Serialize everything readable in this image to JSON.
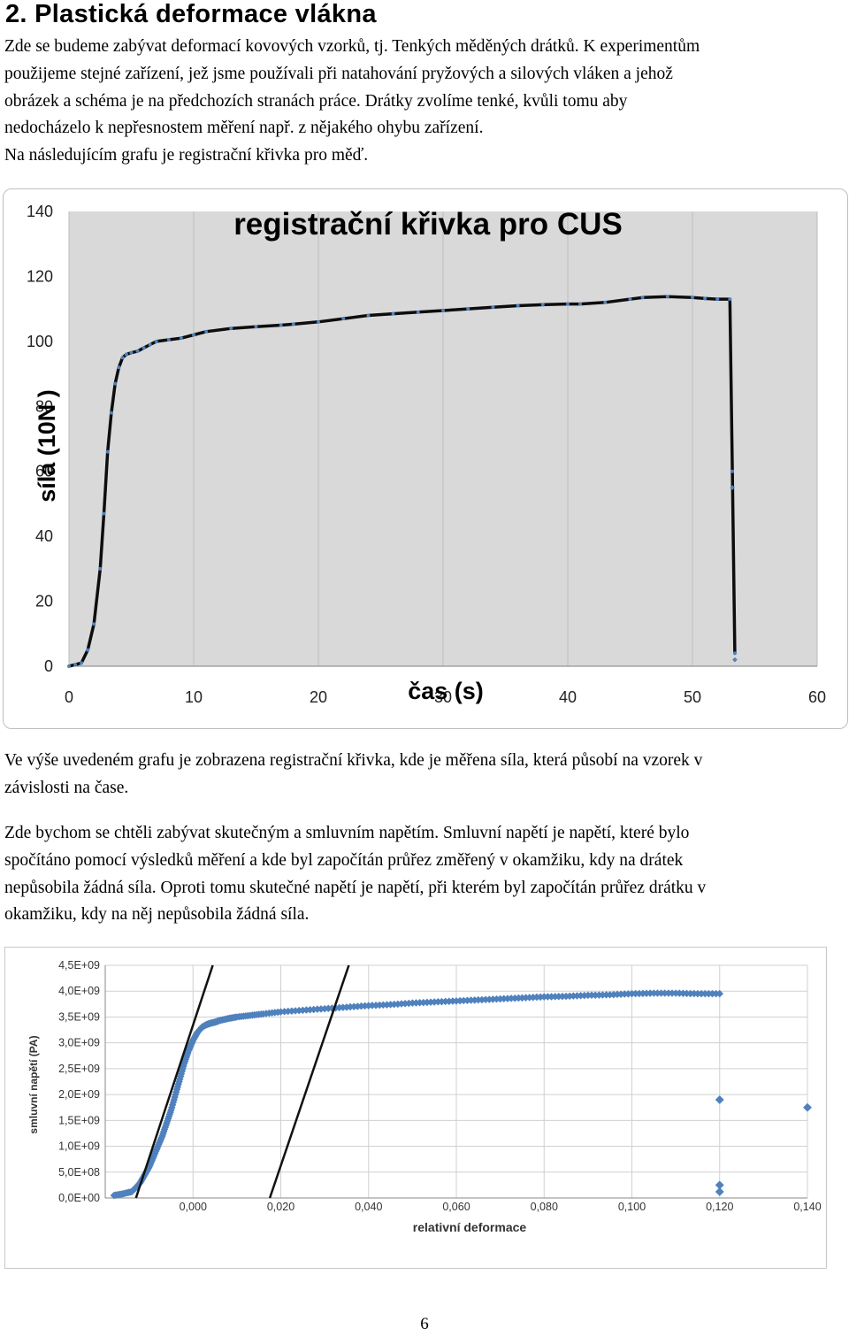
{
  "document": {
    "heading": "2. Plastická deformace vlákna",
    "intro_lines": [
      "Zde se budeme zabývat deformací kovových vzorků, tj. Tenkých měděných drátků. K experimentům",
      "použijeme stejné zařízení, jež jsme používali při natahování pryžových a silových vláken a jehož",
      "obrázek a schéma je na předchozích stranách práce. Drátky zvolíme tenké, kvůli tomu aby",
      "nedocházelo k nepřesnostem měření např. z nějakého ohybu zařízení.",
      "Na následujícím grafu je registrační křivka pro měď."
    ],
    "para2_lines": [
      "Ve výše uvedeném grafu je zobrazena registrační křivka, kde je měřena síla, která působí na vzorek v",
      "závislosti na čase."
    ],
    "para3_lines": [
      "Zde bychom se chtěli zabývat skutečným a smluvním napětím. Smluvní napětí je napětí, které bylo",
      "spočítáno pomocí výsledků měření a kde byl započítán průřez změřený v okamžiku, kdy na drátek",
      "nepůsobila žádná síla. Oproti tomu skutečné napětí je napětí, při kterém byl započítán průřez drátku v",
      "okamžiku, kdy na něj nepůsobila žádná síla."
    ],
    "page_number": "6"
  },
  "chart_data": [
    {
      "type": "line",
      "title": "registrační křivka pro CUS",
      "xlabel": "čas (s)",
      "ylabel": "síla (10N )",
      "xlim": [
        0,
        60
      ],
      "ylim": [
        0,
        140
      ],
      "x_ticks": [
        "0",
        "10",
        "20",
        "30",
        "40",
        "50",
        "60"
      ],
      "y_ticks": [
        "0",
        "20",
        "40",
        "60",
        "80",
        "100",
        "120",
        "140"
      ],
      "plot_background": "#d9d9d9",
      "line_color": "#0d0d0d",
      "marker_color": "#4f81bd",
      "grid": "vertical",
      "series": [
        {
          "x": [
            0,
            0.5,
            1,
            1.5,
            2,
            2.5,
            2.8,
            3.1,
            3.4,
            3.7,
            4,
            4.3,
            4.6,
            5,
            5.5,
            6,
            6.5,
            7,
            8,
            9,
            10,
            11,
            13,
            15,
            17,
            18,
            20,
            22,
            24,
            26,
            28,
            30,
            32,
            34,
            36,
            38,
            40,
            41,
            43,
            45,
            46,
            48,
            50,
            51,
            52,
            53,
            53.2,
            53.4
          ],
          "y": [
            0,
            0.5,
            1,
            5,
            13,
            30,
            47,
            66,
            78,
            87,
            92,
            95,
            96,
            96.5,
            97,
            98,
            99,
            100,
            100.5,
            101,
            102,
            103,
            104,
            104.5,
            105,
            105.3,
            106,
            107,
            108,
            108.5,
            109,
            109.5,
            110,
            110.5,
            111,
            111.3,
            111.5,
            111.5,
            112,
            113,
            113.5,
            113.8,
            113.5,
            113.2,
            113,
            113,
            60,
            4
          ]
        }
      ],
      "outlier_points": [
        [
          53.4,
          2
        ],
        [
          53.2,
          55
        ]
      ]
    },
    {
      "type": "scatter",
      "title": "",
      "xlabel": "relativní deformace",
      "ylabel": "smluvní napětí (PA)",
      "xlim": [
        -0.02,
        0.14
      ],
      "ylim": [
        0,
        4500000000
      ],
      "x_ticks": [
        "0,000",
        "0,020",
        "0,040",
        "0,060",
        "0,080",
        "0,100",
        "0,120",
        "0,140"
      ],
      "y_ticks": [
        "0,0E+00",
        "5,0E+08",
        "1,0E+09",
        "1,5E+09",
        "2,0E+09",
        "2,5E+09",
        "3,0E+09",
        "3,5E+09",
        "4,0E+09",
        "4,5E+09"
      ],
      "grid": true,
      "marker_color": "#4f81bd",
      "series": [
        {
          "x": [
            -0.018,
            -0.016,
            -0.014,
            -0.013,
            -0.012,
            -0.011,
            -0.01,
            -0.009,
            -0.008,
            -0.007,
            -0.006,
            -0.005,
            -0.004,
            -0.003,
            -0.002,
            -0.001,
            0.0,
            0.001,
            0.002,
            0.003,
            0.004,
            0.005,
            0.006,
            0.008,
            0.01,
            0.013,
            0.016,
            0.02,
            0.025,
            0.03,
            0.035,
            0.04,
            0.045,
            0.05,
            0.055,
            0.06,
            0.065,
            0.07,
            0.075,
            0.08,
            0.085,
            0.09,
            0.095,
            0.1,
            0.105,
            0.11,
            0.115,
            0.12
          ],
          "y": [
            50000000,
            80000000,
            120000000,
            200000000,
            300000000,
            450000000,
            600000000,
            800000000,
            1000000000,
            1200000000,
            1450000000,
            1700000000,
            2000000000,
            2300000000,
            2600000000,
            2850000000,
            3050000000,
            3200000000,
            3300000000,
            3350000000,
            3380000000,
            3400000000,
            3430000000,
            3470000000,
            3500000000,
            3530000000,
            3560000000,
            3600000000,
            3630000000,
            3660000000,
            3690000000,
            3720000000,
            3740000000,
            3770000000,
            3790000000,
            3810000000,
            3830000000,
            3850000000,
            3870000000,
            3890000000,
            3900000000,
            3920000000,
            3930000000,
            3950000000,
            3960000000,
            3960000000,
            3950000000,
            3950000000
          ]
        }
      ],
      "outlier_points": [
        [
          0.12,
          1900000000
        ],
        [
          0.12,
          250000000
        ],
        [
          0.12,
          120000000
        ],
        [
          0.14,
          1750000000
        ]
      ],
      "reference_lines": [
        {
          "x1": -0.013,
          "y1": 0,
          "x2": 0.0045,
          "y2": 4500000000
        },
        {
          "x1": 0.0175,
          "y1": 0,
          "x2": 0.0355,
          "y2": 4500000000
        }
      ]
    }
  ]
}
